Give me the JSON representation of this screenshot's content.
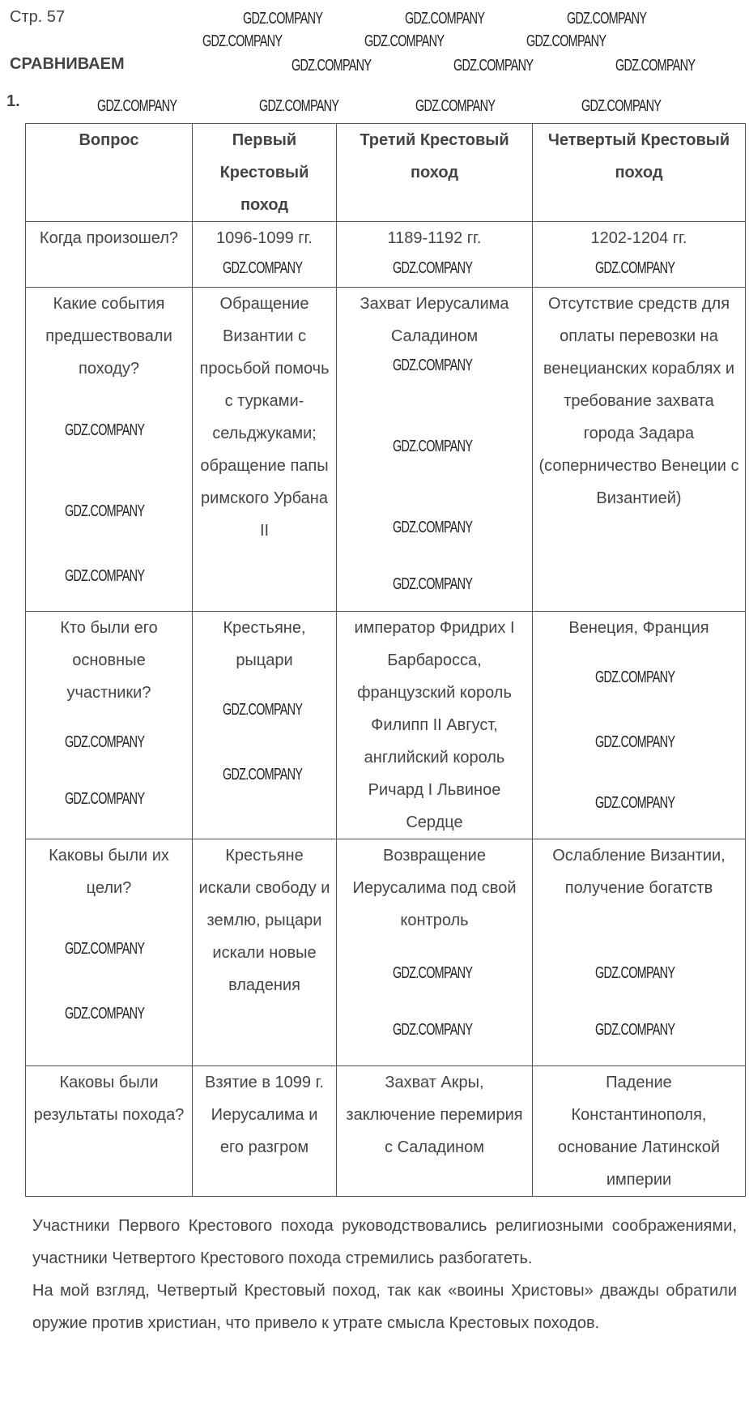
{
  "page_label": "Стр. 57",
  "heading": "СРАВНИВАЕМ",
  "task_number": "1.",
  "watermark": "GDZ.COMPANY",
  "table": {
    "headers": [
      "Вопрос",
      "Первый Крестовый поход",
      "Третий Крестовый поход",
      "Четвертый Крестовый поход"
    ],
    "rows": [
      [
        "Когда произошел?",
        "1096-1099 гг.",
        "1189-1192 гг.",
        "1202-1204 гг."
      ],
      [
        "Какие события предшествовали походу?",
        "Обращение Византии с просьбой помочь с турками-сельджуками; обращение папы римского Урбана II",
        "Захват Иерусалима Саладином",
        "Отсутствие средств для оплаты перевозки на венецианских кораблях и требование захвата города Задара (соперничество Венеции с Византией)"
      ],
      [
        "Кто были его основные участники?",
        "Крестьяне, рыцари",
        "император Фридрих I Барбаросса, французский король Филипп II Август, английский король Ричард I Львиное Сердце",
        "Венеция, Франция"
      ],
      [
        "Каковы были их цели?",
        "Крестьяне искали свободу и землю, рыцари искали новые владения",
        "Возвращение Иерусалима под свой контроль",
        "Ослабление Византии, получение богатств"
      ],
      [
        "Каковы были результаты похода?",
        "Взятие в 1099 г. Иерусалима и его разгром",
        "Захват Акры, заключение перемирия с Саладином",
        "Падение Константинополя, основание Латинской империи"
      ]
    ]
  },
  "paragraphs": [
    "Участники Первого Крестового похода руководствовались религиозными соображениями, участники Четвертого Крестового похода стремились разбогатеть.",
    "На мой взгляд, Четвертый Крестовый поход, так как «воины Христовы» дважды обратили оружие против христиан, что привело к утрате смысла Крестовых походов."
  ]
}
